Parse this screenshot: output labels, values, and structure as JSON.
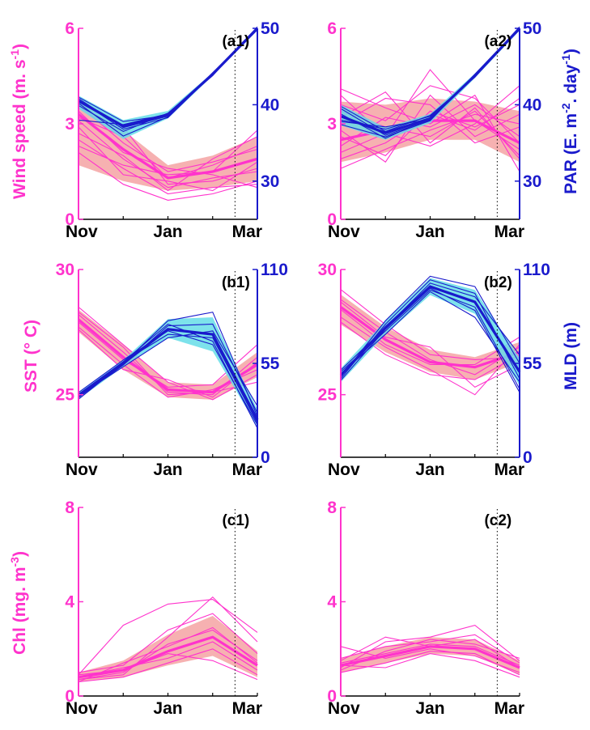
{
  "colors": {
    "left_axis": "#ff33cc",
    "right_axis": "#1a1acc",
    "pink_band": "#f5a3a3",
    "blue_band": "#66dde8",
    "vline": "#000000"
  },
  "ylabels": {
    "wind": "Wind speed (m. s",
    "wind_sup": "-1",
    "wind_close": ")",
    "par": "PAR (E. m",
    "par_sup1": "-2",
    "par_mid": ". day",
    "par_sup2": "-1",
    "par_close": ")",
    "sst": "SST (° C)",
    "mld": "MLD (m)",
    "chl": "Chl (mg. m",
    "chl_sup": "-3",
    "chl_close": ")"
  },
  "chart_data": [
    {
      "type": "line",
      "panel_label": "(a1)",
      "x_ticks": [
        "Nov",
        "Jan",
        "Mar"
      ],
      "left_axis": {
        "ticks": [
          "0",
          "3",
          "6"
        ],
        "ylim": [
          0,
          6
        ]
      },
      "right_axis": {
        "ticks": [
          "30",
          "40",
          "50"
        ],
        "ylim": [
          25,
          50
        ]
      },
      "vline_month": 3.5,
      "left_series": {
        "mean": [
          3.3,
          2.2,
          1.3,
          1.5,
          1.9
        ],
        "band_low": [
          1.7,
          1.2,
          0.9,
          1.0,
          1.2
        ],
        "band_high": [
          3.7,
          2.8,
          1.7,
          2.0,
          2.6
        ],
        "members": [
          [
            3.1,
            1.9,
            1.0,
            1.3,
            1.5
          ],
          [
            2.5,
            1.6,
            0.8,
            1.0,
            1.1
          ],
          [
            3.6,
            2.4,
            1.5,
            1.8,
            2.2
          ],
          [
            3.2,
            2.6,
            1.3,
            1.7,
            2.3
          ],
          [
            2.9,
            1.4,
            1.2,
            0.9,
            1.8
          ],
          [
            2.1,
            1.1,
            0.6,
            0.8,
            1.2
          ],
          [
            3.4,
            2.1,
            1.6,
            1.4,
            1.0
          ],
          [
            2.7,
            2.0,
            0.9,
            1.9,
            2.6
          ],
          [
            3.8,
            2.9,
            1.1,
            1.2,
            1.6
          ],
          [
            2.3,
            1.7,
            1.4,
            1.5,
            2.8
          ]
        ]
      },
      "right_series": {
        "mean": [
          40.5,
          37.2,
          38.7,
          44.0,
          50.0
        ],
        "band_low": [
          39.5,
          35.5,
          38.2,
          43.8,
          49.7
        ],
        "band_high": [
          41.2,
          38.0,
          39.2,
          44.2,
          50.2
        ],
        "members": [
          [
            40.8,
            37.0,
            38.5,
            44.1,
            50.1
          ],
          [
            39.9,
            36.5,
            38.9,
            43.9,
            49.8
          ],
          [
            41.0,
            37.8,
            38.6,
            44.0,
            50.0
          ],
          [
            40.2,
            35.9,
            38.4,
            44.2,
            49.9
          ],
          [
            38.0,
            37.4,
            38.8,
            43.8,
            50.2
          ],
          [
            40.6,
            36.8,
            38.3,
            44.0,
            50.0
          ]
        ]
      }
    },
    {
      "type": "line",
      "panel_label": "(a2)",
      "x_ticks": [
        "Nov",
        "Jan",
        "Mar"
      ],
      "left_axis": {
        "ticks": [
          "0",
          "3",
          "6"
        ],
        "ylim": [
          0,
          6
        ]
      },
      "right_axis": {
        "ticks": [
          "30",
          "40",
          "50"
        ],
        "ylim": [
          25,
          50
        ]
      },
      "vline_month": 3.5,
      "left_series": {
        "mean": [
          2.5,
          2.8,
          3.1,
          3.1,
          2.4
        ],
        "band_low": [
          1.8,
          2.1,
          2.5,
          2.5,
          1.8
        ],
        "band_high": [
          3.7,
          3.6,
          3.8,
          3.7,
          3.4
        ],
        "members": [
          [
            2.3,
            3.2,
            2.9,
            3.6,
            2.6
          ],
          [
            3.9,
            2.6,
            4.7,
            3.1,
            2.2
          ],
          [
            1.9,
            2.4,
            3.3,
            2.8,
            3.8
          ],
          [
            3.4,
            2.9,
            2.6,
            3.4,
            2.0
          ],
          [
            2.8,
            1.8,
            3.9,
            2.6,
            3.3
          ],
          [
            4.1,
            3.5,
            3.0,
            3.9,
            1.5
          ],
          [
            2.1,
            2.7,
            2.3,
            3.0,
            4.2
          ],
          [
            3.0,
            3.8,
            3.6,
            2.4,
            2.9
          ],
          [
            1.6,
            2.2,
            2.8,
            3.3,
            3.0
          ],
          [
            3.6,
            3.1,
            4.2,
            3.8,
            2.4
          ],
          [
            2.6,
            2.0,
            3.4,
            2.9,
            3.6
          ],
          [
            3.2,
            4.0,
            2.4,
            3.5,
            1.9
          ]
        ]
      },
      "right_series": {
        "mean": [
          38.5,
          36.3,
          38.2,
          43.8,
          50.0
        ],
        "band_low": [
          37.3,
          35.4,
          37.6,
          43.5,
          49.7
        ],
        "band_high": [
          40.0,
          37.0,
          38.8,
          44.1,
          50.2
        ],
        "members": [
          [
            39.5,
            36.0,
            38.0,
            43.9,
            50.0
          ],
          [
            38.0,
            36.8,
            38.5,
            43.7,
            49.9
          ],
          [
            37.4,
            35.8,
            37.9,
            44.0,
            50.1
          ],
          [
            39.8,
            36.5,
            38.6,
            43.6,
            50.0
          ],
          [
            38.8,
            35.6,
            38.3,
            43.9,
            49.8
          ],
          [
            37.8,
            37.1,
            38.1,
            43.8,
            50.2
          ]
        ]
      }
    },
    {
      "type": "line",
      "panel_label": "(b1)",
      "x_ticks": [
        "Nov",
        "Jan",
        "Mar"
      ],
      "left_axis": {
        "ticks": [
          "25",
          "30"
        ],
        "ylim": [
          22.5,
          30
        ]
      },
      "right_axis": {
        "ticks": [
          "0",
          "55",
          "110"
        ],
        "ylim": [
          0,
          110
        ]
      },
      "vline_month": 3.5,
      "left_series": {
        "mean": [
          28.0,
          26.5,
          25.2,
          25.1,
          26.2
        ],
        "band_low": [
          27.5,
          26.0,
          24.9,
          24.8,
          25.7
        ],
        "band_high": [
          28.4,
          27.0,
          25.5,
          25.4,
          26.7
        ],
        "members": [
          [
            28.2,
            26.7,
            25.1,
            25.0,
            26.5
          ],
          [
            27.7,
            26.2,
            24.9,
            25.2,
            26.0
          ],
          [
            28.5,
            27.0,
            25.5,
            24.8,
            25.8
          ],
          [
            27.9,
            26.4,
            25.3,
            25.4,
            27.0
          ],
          [
            28.3,
            26.9,
            25.0,
            25.1,
            25.5
          ],
          [
            27.6,
            26.0,
            25.6,
            24.9,
            26.3
          ]
        ]
      },
      "right_series": {
        "mean": [
          36,
          55,
          75,
          72,
          22
        ],
        "band_low": [
          34,
          53,
          70,
          62,
          18
        ],
        "band_high": [
          38,
          57,
          81,
          82,
          28
        ],
        "members": [
          [
            35,
            54,
            77,
            78,
            26
          ],
          [
            37,
            56,
            72,
            70,
            20
          ],
          [
            34,
            55,
            80,
            85,
            24
          ],
          [
            38,
            57,
            74,
            66,
            19
          ],
          [
            36,
            53,
            70,
            74,
            30
          ],
          [
            35,
            56,
            78,
            68,
            17
          ]
        ]
      }
    },
    {
      "type": "line",
      "panel_label": "(b2)",
      "x_ticks": [
        "Nov",
        "Jan",
        "Mar"
      ],
      "left_axis": {
        "ticks": [
          "25",
          "30"
        ],
        "ylim": [
          22.5,
          30
        ]
      },
      "right_axis": {
        "ticks": [
          "0",
          "55",
          "110"
        ],
        "ylim": [
          0,
          110
        ]
      },
      "vline_month": 3.5,
      "left_series": {
        "mean": [
          28.5,
          27.2,
          26.3,
          26.1,
          26.7
        ],
        "band_low": [
          27.8,
          26.7,
          25.9,
          25.6,
          26.3
        ],
        "band_high": [
          29.0,
          27.7,
          26.8,
          26.5,
          27.1
        ],
        "members": [
          [
            28.8,
            27.5,
            26.4,
            25.8,
            26.9
          ],
          [
            28.1,
            26.9,
            26.0,
            25.0,
            27.0
          ],
          [
            29.2,
            27.8,
            26.6,
            26.4,
            26.5
          ],
          [
            28.4,
            27.0,
            26.2,
            26.2,
            27.3
          ],
          [
            27.9,
            26.6,
            25.8,
            25.6,
            26.6
          ],
          [
            28.7,
            27.3,
            26.9,
            25.3,
            26.2
          ]
        ]
      },
      "right_series": {
        "mean": [
          48,
          76,
          100,
          91,
          50
        ],
        "band_low": [
          44,
          72,
          95,
          84,
          42
        ],
        "band_high": [
          52,
          80,
          105,
          98,
          58
        ],
        "members": [
          [
            46,
            78,
            104,
            96,
            46
          ],
          [
            50,
            74,
            98,
            88,
            40
          ],
          [
            47,
            80,
            106,
            100,
            55
          ],
          [
            49,
            72,
            97,
            82,
            44
          ],
          [
            51,
            76,
            102,
            94,
            60
          ],
          [
            45,
            75,
            99,
            86,
            38
          ]
        ]
      }
    },
    {
      "type": "line",
      "panel_label": "(c1)",
      "x_ticks": [
        "Nov",
        "Jan",
        "Mar"
      ],
      "left_axis": {
        "ticks": [
          "0",
          "4",
          "8"
        ],
        "ylim": [
          0,
          8
        ]
      },
      "vline_month": 3.5,
      "left_series": {
        "mean": [
          0.8,
          1.1,
          1.9,
          2.5,
          1.3
        ],
        "band_low": [
          0.6,
          0.8,
          1.3,
          1.7,
          0.8
        ],
        "band_high": [
          1.0,
          1.5,
          2.6,
          3.4,
          1.9
        ],
        "members": [
          [
            0.7,
            1.0,
            2.2,
            2.8,
            1.5
          ],
          [
            0.9,
            3.0,
            3.9,
            4.1,
            2.7
          ],
          [
            0.6,
            0.8,
            1.4,
            2.0,
            0.9
          ],
          [
            1.0,
            1.3,
            2.8,
            3.5,
            1.8
          ],
          [
            0.8,
            1.2,
            1.6,
            2.3,
            1.1
          ],
          [
            0.7,
            0.9,
            2.5,
            4.2,
            2.3
          ],
          [
            0.9,
            1.1,
            1.8,
            1.5,
            0.7
          ],
          [
            0.6,
            1.4,
            2.1,
            2.9,
            1.4
          ]
        ]
      }
    },
    {
      "type": "line",
      "panel_label": "(c2)",
      "x_ticks": [
        "Nov",
        "Jan",
        "Mar"
      ],
      "left_axis": {
        "ticks": [
          "0",
          "4",
          "8"
        ],
        "ylim": [
          0,
          8
        ]
      },
      "vline_month": 3.5,
      "left_series": {
        "mean": [
          1.3,
          1.7,
          2.1,
          2.0,
          1.2
        ],
        "band_low": [
          1.0,
          1.4,
          1.8,
          1.7,
          0.9
        ],
        "band_high": [
          1.6,
          2.1,
          2.5,
          2.4,
          1.5
        ],
        "members": [
          [
            1.4,
            1.8,
            2.2,
            2.1,
            1.3
          ],
          [
            1.2,
            2.3,
            2.5,
            3.0,
            1.5
          ],
          [
            1.0,
            1.4,
            1.9,
            1.8,
            0.9
          ],
          [
            1.6,
            2.1,
            2.3,
            2.6,
            1.4
          ],
          [
            2.1,
            1.6,
            2.0,
            1.7,
            1.0
          ],
          [
            1.1,
            1.9,
            2.4,
            2.2,
            1.6
          ],
          [
            1.3,
            1.2,
            1.8,
            1.5,
            0.8
          ],
          [
            1.5,
            2.5,
            2.1,
            2.4,
            1.2
          ]
        ]
      }
    }
  ]
}
